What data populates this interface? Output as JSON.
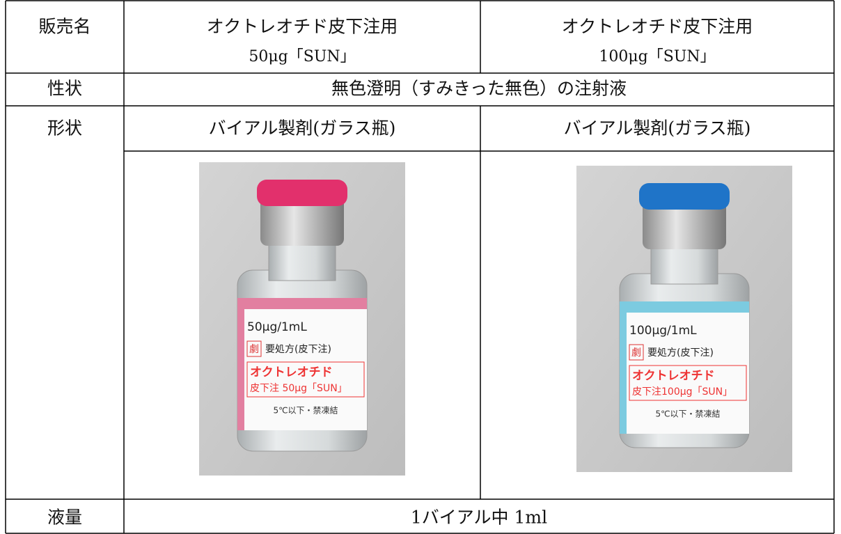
{
  "table": {
    "rows": [
      {
        "label": "販売名",
        "cells": [
          [
            "オクトレオチド皮下注用",
            "50μg「SUN」"
          ],
          [
            "オクトレオチド皮下注用",
            "100μg「SUN」"
          ]
        ]
      },
      {
        "label": "性状",
        "cells": [
          "無色澄明（すみきった無色）の注射液"
        ]
      },
      {
        "label": "形状",
        "cells": [
          "バイアル製剤(ガラス瓶)",
          "バイアル製剤(ガラス瓶)"
        ]
      },
      {
        "label": "液量",
        "cells": [
          "1バイアル中 1ml"
        ]
      }
    ]
  },
  "vials": [
    {
      "strength": "50μg/1mL",
      "badge": "劇",
      "rx": "要処方(皮下注)",
      "name": "オクトレオチド",
      "product": "皮下注 50μg「SUN」",
      "storage": "5℃以下・禁凍結"
    },
    {
      "strength": "100μg/1mL",
      "badge": "劇",
      "rx": "要処方(皮下注)",
      "name": "オクトレオチド",
      "product": "皮下注100μg「SUN」",
      "storage": "5℃以下・禁凍結"
    }
  ]
}
